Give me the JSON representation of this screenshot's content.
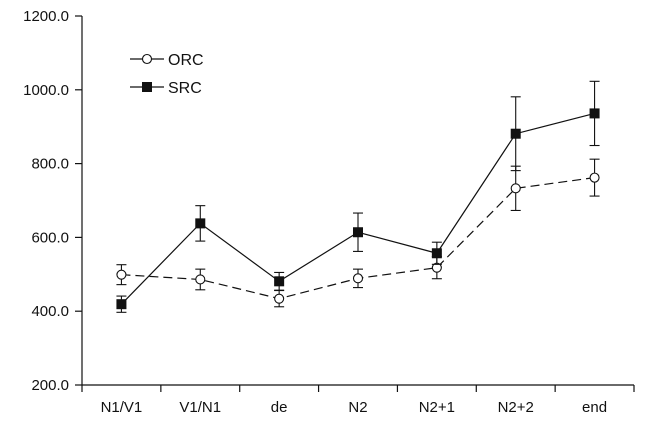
{
  "chart_data": {
    "type": "line",
    "categories": [
      "N1/V1",
      "V1/N1",
      "de",
      "N2",
      "N2+1",
      "N2+2",
      "end"
    ],
    "ylim": [
      200,
      1200
    ],
    "y_ticks": [
      "200.0",
      "400.0",
      "600.0",
      "800.0",
      "1000.0",
      "1200.0"
    ],
    "grid": false,
    "legend_position": "top-left",
    "series": [
      {
        "name": "ORC",
        "marker": "open-circle",
        "line_style": "dashed",
        "values": [
          499,
          486,
          434,
          489,
          518,
          733,
          762
        ],
        "error": [
          27,
          28,
          22,
          25,
          30,
          60,
          50
        ]
      },
      {
        "name": "SRC",
        "marker": "filled-square",
        "line_style": "solid",
        "values": [
          419,
          638,
          481,
          614,
          557,
          881,
          936
        ],
        "error": [
          22,
          48,
          24,
          52,
          30,
          100,
          87
        ]
      }
    ],
    "colors": {
      "line": "#111111",
      "marker_fill_open": "#ffffff",
      "marker_fill_solid": "#111111"
    }
  }
}
